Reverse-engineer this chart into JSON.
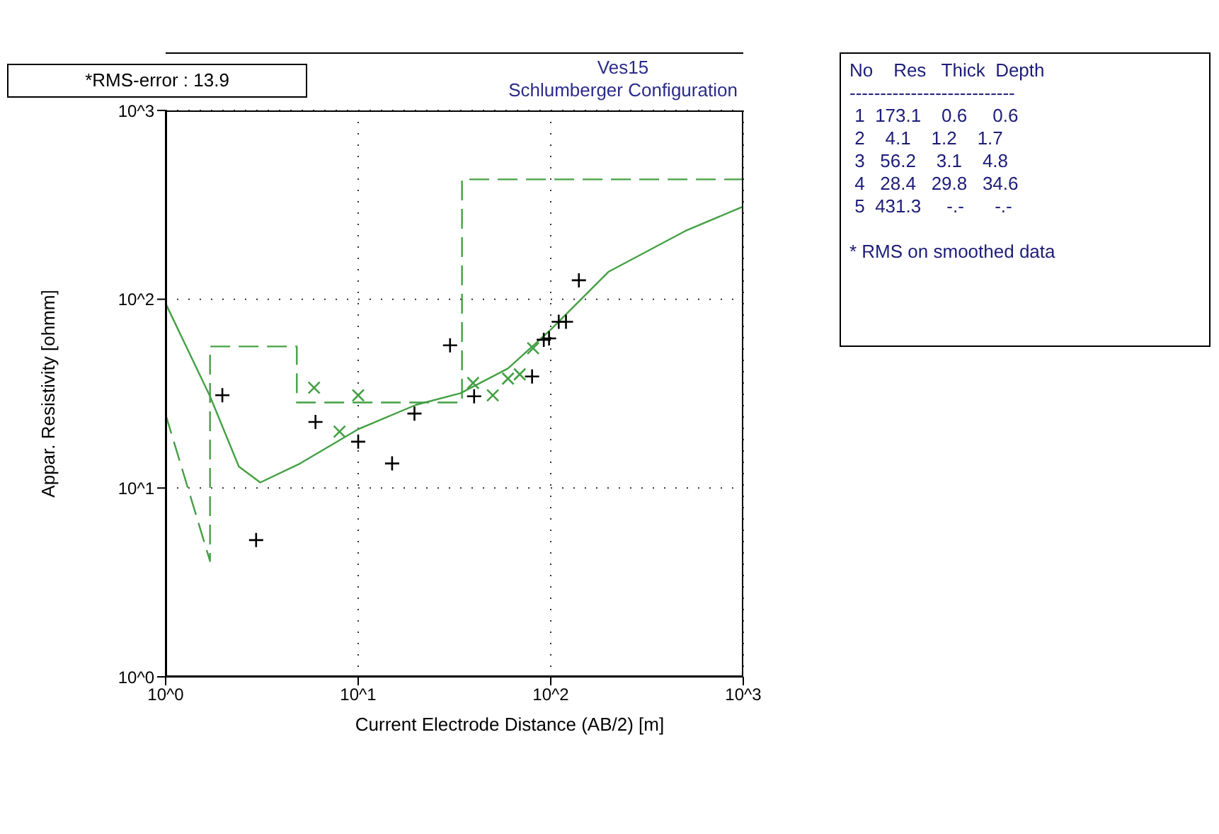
{
  "chart_data": {
    "type": "scatter",
    "title": "Ves15",
    "subtitle": "Schlumberger Configuration",
    "xlabel": "Current Electrode Distance (AB/2) [m]",
    "ylabel": "Appar. Resistivity [ohmm]",
    "log": "xy",
    "xlim": [
      1,
      1000
    ],
    "ylim": [
      1,
      1000
    ],
    "xticks": [
      {
        "value": 1,
        "label": "10^0"
      },
      {
        "value": 10,
        "label": "10^1"
      },
      {
        "value": 100,
        "label": "10^2"
      },
      {
        "value": 1000,
        "label": "10^3"
      }
    ],
    "yticks": [
      {
        "value": 1,
        "label": "10^0"
      },
      {
        "value": 10,
        "label": "10^1"
      },
      {
        "value": 100,
        "label": "10^2"
      },
      {
        "value": 1000,
        "label": "10^3"
      }
    ],
    "grid": true,
    "annotations": [
      "*RMS-error :  13.9",
      "No    Res   Thick  Depth",
      "---------------------------",
      " 1  173.1    0.6     0.6",
      " 2    4.1    1.2    1.7",
      " 3   56.2    3.1    4.8",
      " 4   28.4   29.8   34.6",
      " 5  431.3     -.-      -.-",
      "* RMS on smoothed data"
    ],
    "series": [
      {
        "type": "line",
        "color": "#44a044",
        "line_style": "dashed",
        "marker": "none",
        "x": [
          1,
          1.7,
          1.7,
          4.8,
          4.8,
          34.6,
          34.6,
          1000
        ],
        "values": [
          24.5,
          4.1,
          56.2,
          56.2,
          28.4,
          28.4,
          431.3,
          431.3
        ]
      },
      {
        "type": "line",
        "color": "#44a044",
        "line_style": "solid",
        "marker": "none",
        "x": [
          1,
          1.7,
          2.4,
          3.1,
          5,
          10,
          20,
          34,
          60,
          100,
          200,
          500,
          1000
        ],
        "values": [
          95,
          30.6,
          13,
          10.7,
          13.5,
          20.5,
          27.6,
          31.8,
          43,
          69,
          140,
          230,
          310
        ]
      },
      {
        "color": "#44a044",
        "marker": "cross",
        "x": [
          5.9,
          8,
          10,
          39.5,
          50,
          60,
          69,
          81
        ],
        "values": [
          34,
          19.9,
          31,
          36,
          31,
          38,
          40,
          55
        ]
      },
      {
        "color": "#000000",
        "marker": "cross",
        "x": [
          1.97,
          2.95,
          6,
          10,
          15,
          19.6,
          30,
          40,
          80,
          92,
          98,
          110,
          120,
          140
        ],
        "values": [
          31,
          5.3,
          22.4,
          17.6,
          13.5,
          24.8,
          57,
          30.6,
          39,
          61,
          62,
          76,
          76,
          126
        ]
      }
    ]
  }
}
